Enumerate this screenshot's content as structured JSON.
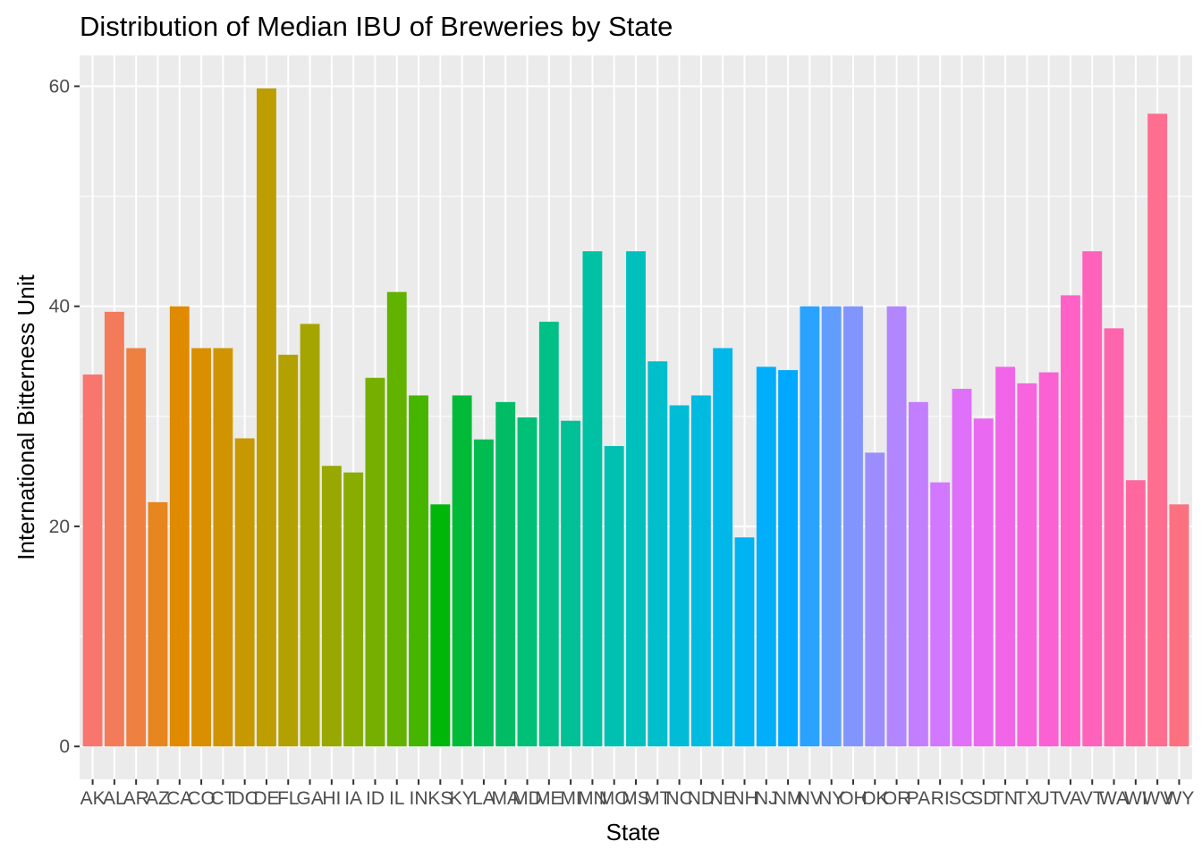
{
  "chart_data": {
    "type": "bar",
    "title": "Distribution of Median IBU of Breweries by State",
    "xlabel": "State",
    "ylabel": "International Bitterness Unit",
    "categories": [
      "AK",
      "AL",
      "AR",
      "AZ",
      "CA",
      "CO",
      "CT",
      "DC",
      "DE",
      "FL",
      "GA",
      "HI",
      "IA",
      "ID",
      "IL",
      "IN",
      "KS",
      "KY",
      "LA",
      "MA",
      "MD",
      "ME",
      "MI",
      "MN",
      "MO",
      "MS",
      "MT",
      "NC",
      "ND",
      "NE",
      "NH",
      "NJ",
      "NM",
      "NV",
      "NY",
      "OH",
      "OK",
      "OR",
      "PA",
      "RI",
      "SC",
      "SD",
      "TN",
      "TX",
      "UT",
      "VA",
      "VT",
      "WA",
      "WI",
      "WV",
      "WY"
    ],
    "values": [
      33.8,
      39.5,
      36.2,
      22.2,
      40,
      36.2,
      36.2,
      28,
      59.8,
      35.6,
      38.4,
      25.5,
      24.9,
      33.5,
      41.3,
      31.9,
      22,
      31.9,
      27.9,
      31.3,
      29.9,
      38.6,
      29.6,
      45,
      27.3,
      45,
      35,
      31,
      31.9,
      36.2,
      19,
      34.5,
      34.2,
      40,
      40,
      40,
      26.7,
      40,
      31.3,
      24,
      32.5,
      29.8,
      34.5,
      33,
      34,
      41,
      45,
      38,
      24.2,
      57.5,
      22
    ],
    "yticks": [
      0,
      20,
      40,
      60
    ],
    "ylim": [
      -2.99,
      62.8
    ],
    "grid": true,
    "legend": "none"
  }
}
